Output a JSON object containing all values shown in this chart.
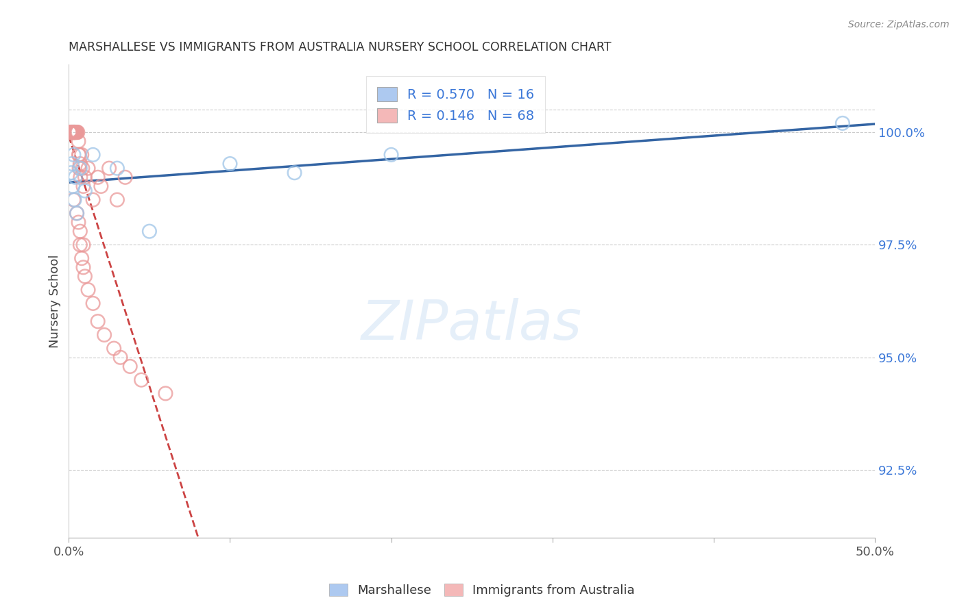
{
  "title": "MARSHALLESE VS IMMIGRANTS FROM AUSTRALIA NURSERY SCHOOL CORRELATION CHART",
  "source": "Source: ZipAtlas.com",
  "ylabel": "Nursery School",
  "xlim": [
    0.0,
    50.0
  ],
  "ylim": [
    91.0,
    101.5
  ],
  "yticks": [
    92.5,
    95.0,
    97.5,
    100.0
  ],
  "ytick_labels": [
    "92.5%",
    "95.0%",
    "97.5%",
    "100.0%"
  ],
  "blue_color": "#9fc5e8",
  "pink_color": "#ea9999",
  "blue_line_color": "#3465a4",
  "pink_line_color": "#cc4444",
  "marshallese_x": [
    0.15,
    0.2,
    0.25,
    0.3,
    0.35,
    0.4,
    0.5,
    0.7,
    1.0,
    1.5,
    3.0,
    5.0,
    10.0,
    14.0,
    20.0,
    48.0
  ],
  "marshallese_y": [
    99.1,
    99.3,
    98.8,
    99.5,
    98.5,
    99.0,
    98.2,
    99.2,
    98.7,
    99.5,
    99.2,
    97.8,
    99.3,
    99.1,
    99.5,
    100.2
  ],
  "australia_x": [
    0.05,
    0.08,
    0.1,
    0.12,
    0.12,
    0.15,
    0.15,
    0.15,
    0.18,
    0.2,
    0.2,
    0.22,
    0.22,
    0.25,
    0.25,
    0.25,
    0.28,
    0.3,
    0.3,
    0.3,
    0.32,
    0.32,
    0.35,
    0.35,
    0.35,
    0.38,
    0.4,
    0.4,
    0.42,
    0.45,
    0.5,
    0.5,
    0.55,
    0.6,
    0.62,
    0.65,
    0.65,
    0.7,
    0.72,
    0.8,
    0.85,
    0.9,
    1.0,
    1.2,
    1.5,
    1.8,
    2.0,
    2.5,
    3.0,
    3.5,
    0.6,
    0.7,
    0.8,
    0.9,
    1.0,
    1.2,
    1.5,
    1.8,
    2.2,
    2.8,
    3.2,
    3.8,
    4.5,
    6.0,
    0.3,
    0.5,
    0.7,
    0.9
  ],
  "australia_y": [
    100.0,
    100.0,
    100.0,
    100.0,
    100.0,
    100.0,
    100.0,
    100.0,
    100.0,
    100.0,
    100.0,
    100.0,
    100.0,
    100.0,
    100.0,
    100.0,
    100.0,
    100.0,
    100.0,
    100.0,
    100.0,
    100.0,
    100.0,
    100.0,
    100.0,
    100.0,
    100.0,
    100.0,
    100.0,
    100.0,
    100.0,
    100.0,
    100.0,
    99.8,
    99.5,
    99.2,
    99.5,
    99.3,
    99.0,
    99.5,
    99.2,
    98.8,
    99.0,
    99.2,
    98.5,
    99.0,
    98.8,
    99.2,
    98.5,
    99.0,
    98.0,
    97.5,
    97.2,
    97.0,
    96.8,
    96.5,
    96.2,
    95.8,
    95.5,
    95.2,
    95.0,
    94.8,
    94.5,
    94.2,
    98.5,
    98.2,
    97.8,
    97.5
  ]
}
